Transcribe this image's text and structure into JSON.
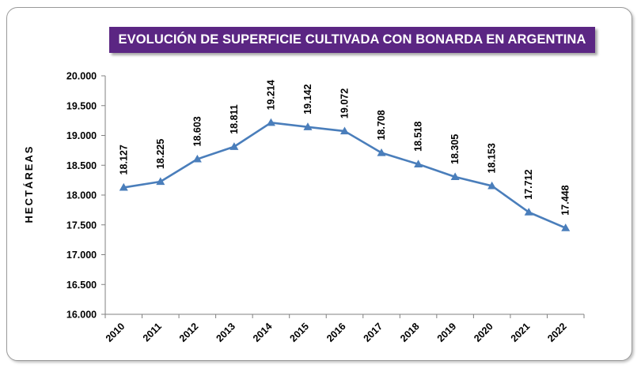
{
  "chart_data": {
    "type": "line",
    "title": "EVOLUCIÓN DE SUPERFICIE CULTIVADA CON BONARDA EN ARGENTINA",
    "ylabel": "HECTÁREAS",
    "xlabel": "",
    "categories": [
      "2010",
      "2011",
      "2012",
      "2013",
      "2014",
      "2015",
      "2016",
      "2017",
      "2018",
      "2019",
      "2020",
      "2021",
      "2022"
    ],
    "values": [
      18127,
      18225,
      18603,
      18811,
      19214,
      19142,
      19072,
      18708,
      18518,
      18305,
      18153,
      17712,
      17448
    ],
    "data_labels": [
      "18.127",
      "18.225",
      "18.603",
      "18.811",
      "19.214",
      "19.142",
      "19.072",
      "18.708",
      "18.518",
      "18.305",
      "18.153",
      "17.712",
      "17.448"
    ],
    "ylim": [
      16000,
      20000
    ],
    "yticks": [
      16000,
      16500,
      17000,
      17500,
      18000,
      18500,
      19000,
      19500,
      20000
    ],
    "ytick_labels": [
      "16.000",
      "16.500",
      "17.000",
      "17.500",
      "18.000",
      "18.500",
      "19.000",
      "19.500",
      "20.000"
    ],
    "grid": false,
    "legend": "none",
    "marker": "triangle",
    "colors": {
      "line": "#4a7ebb",
      "title_background": "#5b2683",
      "title_text": "#ffffff"
    }
  }
}
